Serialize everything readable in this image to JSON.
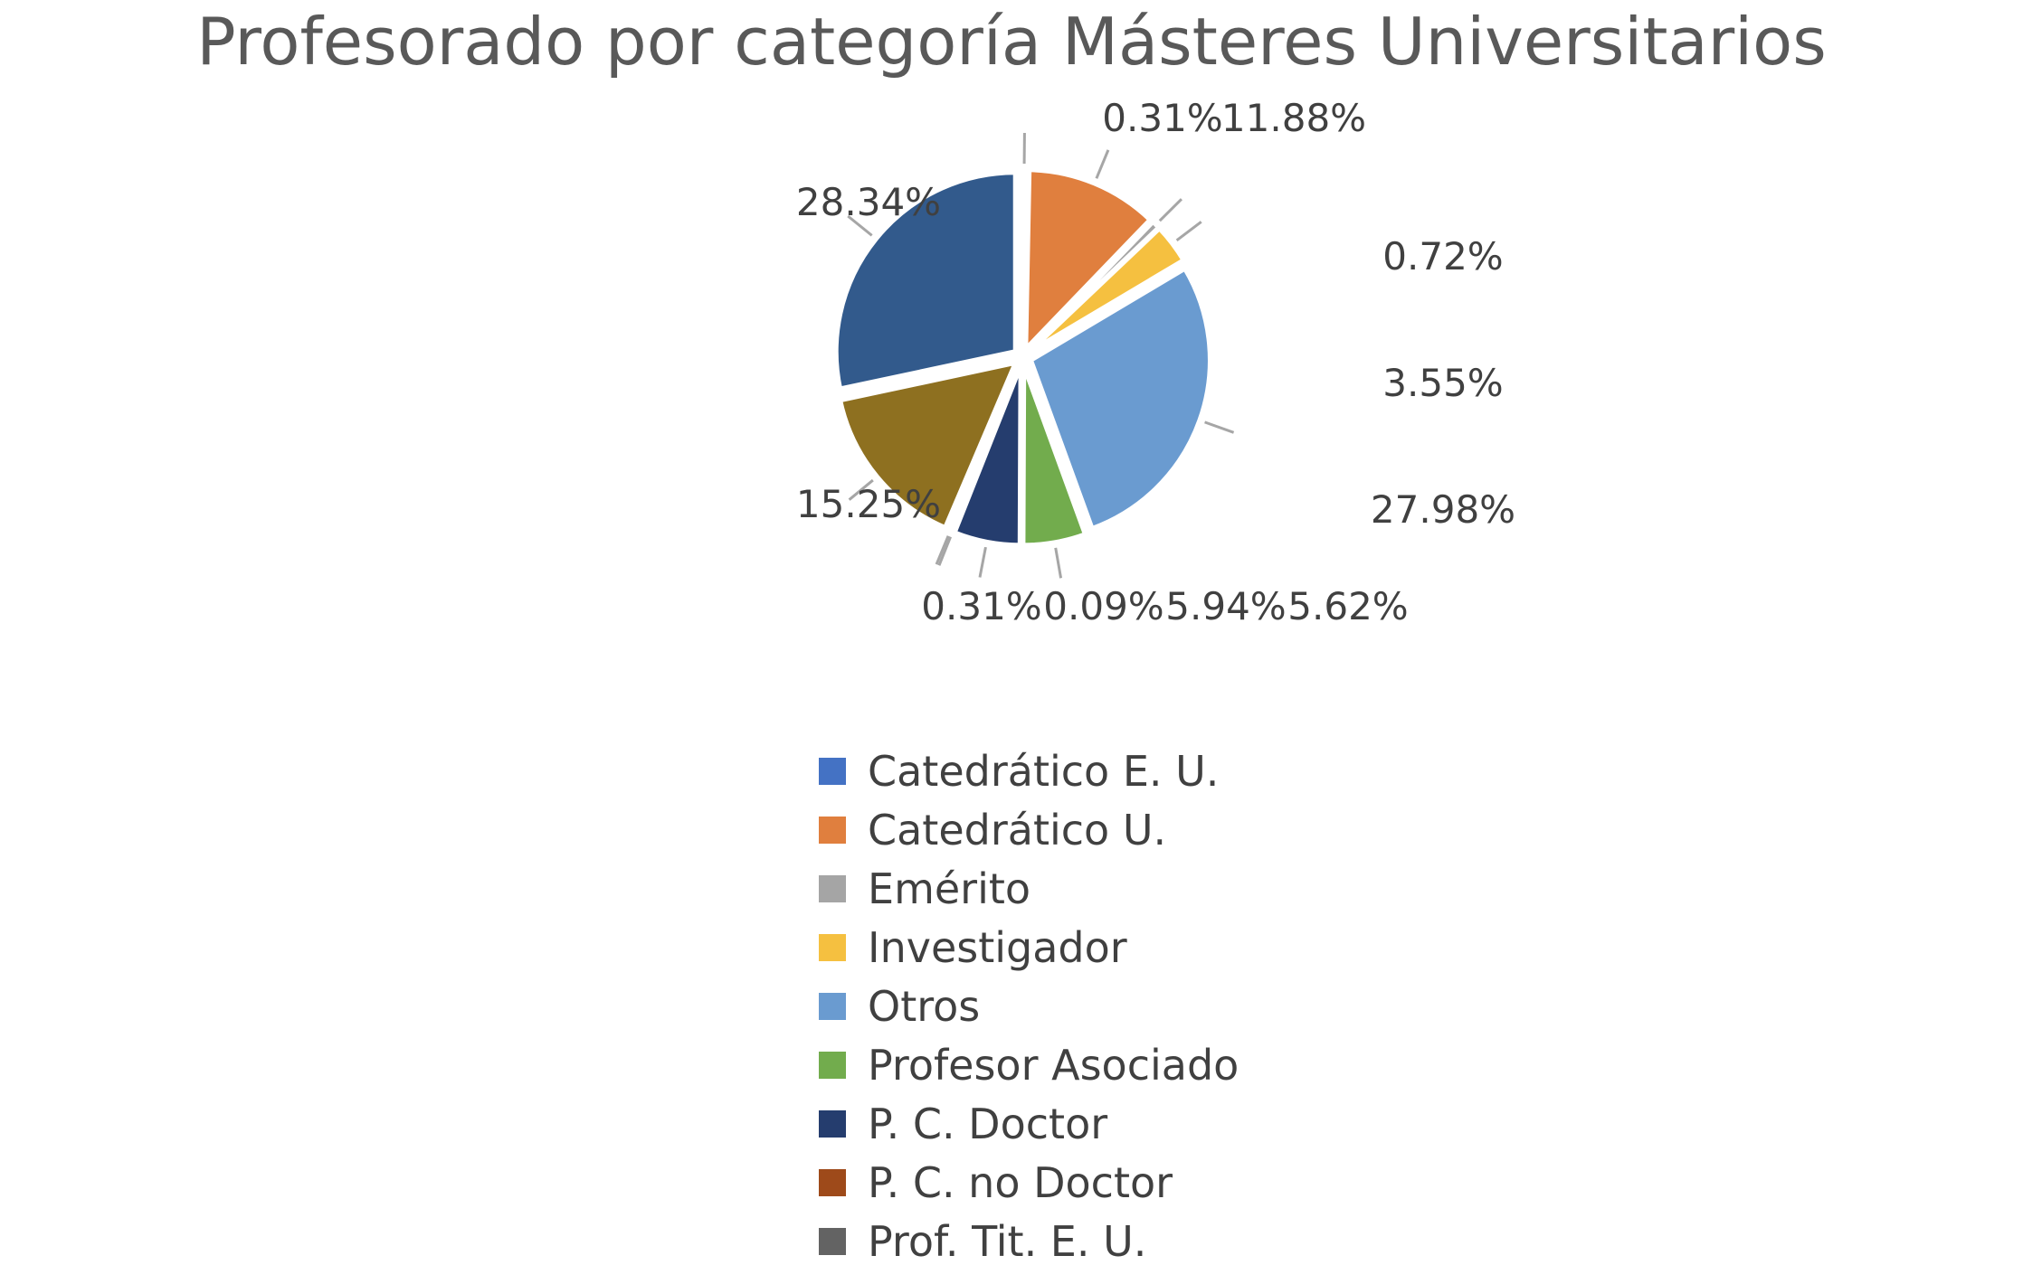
{
  "chart_data": {
    "type": "pie",
    "title": "Profesorado por categoría Másteres Universitarios",
    "legend_position": "bottom",
    "slices": [
      {
        "name": "Catedrático E. U.",
        "value": 0.31,
        "label": "0.31%",
        "color": "#4472C4"
      },
      {
        "name": "Catedrático U.",
        "value": 11.88,
        "label": "11.88%",
        "color": "#E07F3E"
      },
      {
        "name": "Emérito",
        "value": 0.72,
        "label": "0.72%",
        "color": "#A5A5A5"
      },
      {
        "name": "Investigador",
        "value": 3.55,
        "label": "3.55%",
        "color": "#F5C040"
      },
      {
        "name": "Otros",
        "value": 27.98,
        "label": "27.98%",
        "color": "#6A9BD0"
      },
      {
        "name": "Profesor Asociado",
        "value": 5.62,
        "label": "5.62%",
        "color": "#72AC4D"
      },
      {
        "name": "P. C. Doctor",
        "value": 5.94,
        "label": "5.94%",
        "color": "#253D6E"
      },
      {
        "name": "P. C. no Doctor",
        "value": 0.09,
        "label": "0.09%",
        "color": "#9E4A1A"
      },
      {
        "name": "Prof. Tit. E. U.",
        "value": 0.31,
        "label": "0.31%",
        "color": "#636363"
      },
      {
        "name": "",
        "value": 15.25,
        "label": "15.25%",
        "color": "#8E7020"
      },
      {
        "name": "",
        "value": 28.34,
        "label": "28.34%",
        "color": "#325A8C"
      }
    ]
  }
}
